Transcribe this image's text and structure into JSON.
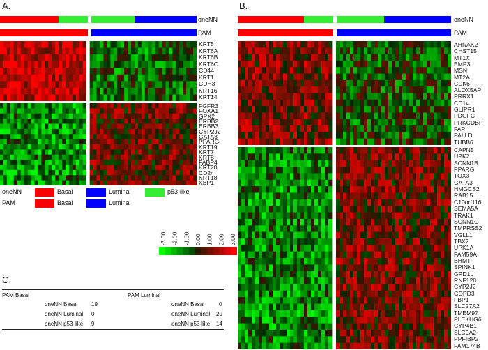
{
  "panels": {
    "a": "A.",
    "b": "B.",
    "c": "C."
  },
  "tracks": {
    "onenn": "oneNN",
    "pam": "PAM"
  },
  "colors": {
    "basal": "#ff0000",
    "luminal": "#0000ff",
    "p53": "#33ee33"
  },
  "panel_a": {
    "genes_top": [
      "KRT5",
      "KRT6A",
      "KRT6B",
      "KRT6C",
      "CD44",
      "KRT1",
      "CDH3",
      "KRT16",
      "KRT14"
    ],
    "genes_bottom": [
      "FGFR3",
      "FOXA1",
      "GPX2",
      "ERBB2",
      "ERBB3",
      "CYP2J2",
      "GATA3",
      "PPARG",
      "KRT19",
      "KRT7",
      "KRT8",
      "FABP4",
      "KRT20",
      "CD24",
      "KRT18",
      "XBP1"
    ]
  },
  "panel_b": {
    "genes_top": [
      "AHNAK2",
      "CHST15",
      "MT1X",
      "EMP3",
      "MSN",
      "MT2A",
      "CDK6",
      "ALOX5AP",
      "PRRX1",
      "CD14",
      "GLIPR1",
      "PDGFC",
      "PRKCDBP",
      "FAP",
      "PALLD",
      "TUBB6"
    ],
    "genes_bottom": [
      "CAPN5",
      "UPK2",
      "SCNN1B",
      "PPARG",
      "TOX3",
      "GATA3",
      "HMGCS2",
      "RAB15",
      "C10orf116",
      "SEMA5A",
      "TRAK1",
      "SCNN1G",
      "TMPRSS2",
      "VGLL1",
      "TBX2",
      "UPK1A",
      "FAM59A",
      "BHMT",
      "SPINK1",
      "GPD1L",
      "RNF128",
      "CYP2J2",
      "GDPD3",
      "FBP1",
      "SLC27A2",
      "TMEM97",
      "PLEKHG6",
      "CYP4B1",
      "SLC9A2",
      "PPFIBP2",
      "FAM174B"
    ]
  },
  "legend": {
    "onenn_label": "oneNN",
    "pam_label": "PAM",
    "basal": "Basal",
    "luminal": "Luminal",
    "p53like": "p53-like",
    "scale": [
      "-3.00",
      "-2.00",
      "-1.00",
      "0.00",
      "1.00",
      "2.00",
      "3.00"
    ]
  },
  "table_c": {
    "left_header": "PAM Basal",
    "right_header": "PAM Luminal",
    "rows": [
      {
        "label_left": "oneNN Basal",
        "left": "19",
        "label_right": "oneNN Basal",
        "right": "0"
      },
      {
        "label_left": "oneNN Luminal",
        "left": "0",
        "label_right": "oneNN Luminal",
        "right": "20"
      },
      {
        "label_left": "oneNN p53-like",
        "left": "9",
        "label_right": "oneNN p53-like",
        "right": "14"
      }
    ]
  }
}
